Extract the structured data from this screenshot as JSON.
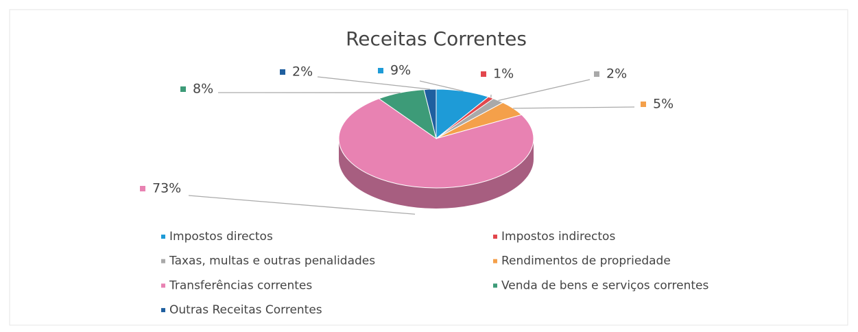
{
  "chart_data": {
    "type": "pie",
    "title": "Receitas Correntes",
    "categories": [
      "Impostos directos",
      "Impostos indirectos",
      "Taxas, multas e outras penalidades",
      "Rendimentos de propriedade",
      "Transferências correntes",
      "Venda de bens e serviços correntes",
      "Outras Receitas Correntes"
    ],
    "values": [
      9,
      1,
      2,
      5,
      73,
      8,
      2
    ],
    "value_labels": [
      "9%",
      "1%",
      "2%",
      "5%",
      "73%",
      "8%",
      "2%"
    ],
    "colors": [
      "#1e9bd7",
      "#e2474d",
      "#a9a9a9",
      "#f4a04a",
      "#e882b2",
      "#3d9b78",
      "#1f5f9f"
    ]
  }
}
